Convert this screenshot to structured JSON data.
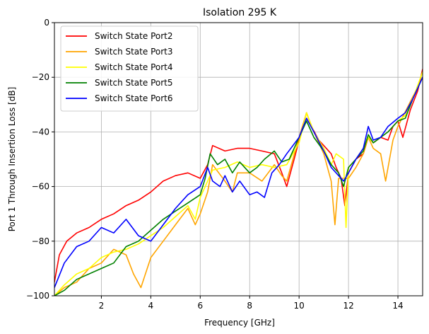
{
  "chart_data": {
    "type": "line",
    "title": "Isolation 295 K",
    "xlabel": "Frequency [GHz]",
    "ylabel": "Port 1 Through Insertion Loss [dB]",
    "xlim": [
      0.1,
      15.0
    ],
    "ylim": [
      -100,
      0
    ],
    "xticks": [
      2,
      4,
      6,
      8,
      10,
      12,
      14
    ],
    "yticks": [
      -100,
      -80,
      -60,
      -40,
      -20,
      0
    ],
    "grid": true,
    "legend_position": "top-left",
    "series": [
      {
        "name": "Switch State Port2",
        "color": "#ff0000",
        "x": [
          0.1,
          0.3,
          0.6,
          1.0,
          1.5,
          2.0,
          2.5,
          3.0,
          3.5,
          4.0,
          4.5,
          5.0,
          5.5,
          6.0,
          6.3,
          6.5,
          7.0,
          7.5,
          8.0,
          8.5,
          9.0,
          9.3,
          9.5,
          9.8,
          10.0,
          10.3,
          10.5,
          10.8,
          11.0,
          11.3,
          11.5,
          11.7,
          11.85,
          12.0,
          12.3,
          12.6,
          12.8,
          13.0,
          13.3,
          13.6,
          13.8,
          14.0,
          14.2,
          14.5,
          14.8,
          15.0
        ],
        "y": [
          -95,
          -85,
          -80,
          -77,
          -75,
          -72,
          -70,
          -67,
          -65,
          -62,
          -58,
          -56,
          -55,
          -57,
          -52,
          -45,
          -47,
          -46,
          -46,
          -47,
          -48,
          -55,
          -60,
          -50,
          -43,
          -33,
          -38,
          -43,
          -45,
          -48,
          -53,
          -57,
          -67,
          -55,
          -50,
          -48,
          -42,
          -44,
          -42,
          -43,
          -38,
          -36,
          -42,
          -32,
          -25,
          -17
        ]
      },
      {
        "name": "Switch State Port3",
        "color": "#ffa500",
        "x": [
          0.1,
          0.5,
          1.0,
          1.5,
          2.0,
          2.5,
          3.0,
          3.3,
          3.6,
          4.0,
          4.5,
          5.0,
          5.5,
          5.8,
          6.0,
          6.3,
          6.5,
          7.0,
          7.3,
          7.5,
          8.0,
          8.5,
          9.0,
          9.3,
          9.5,
          10.0,
          10.3,
          10.6,
          11.0,
          11.3,
          11.45,
          11.6,
          12.0,
          12.3,
          12.6,
          12.8,
          13.0,
          13.3,
          13.5,
          13.8,
          14.0,
          14.5,
          15.0
        ],
        "y": [
          -100,
          -97,
          -95,
          -90,
          -88,
          -83,
          -85,
          -92,
          -97,
          -86,
          -80,
          -74,
          -68,
          -74,
          -70,
          -62,
          -52,
          -58,
          -62,
          -55,
          -55,
          -58,
          -52,
          -56,
          -58,
          -42,
          -33,
          -40,
          -48,
          -58,
          -74,
          -57,
          -57,
          -53,
          -48,
          -42,
          -46,
          -48,
          -58,
          -43,
          -38,
          -29,
          -20
        ]
      },
      {
        "name": "Switch State Port4",
        "color": "#ffff00",
        "x": [
          0.1,
          0.5,
          1.0,
          1.5,
          2.0,
          2.5,
          3.0,
          3.5,
          4.0,
          4.5,
          5.0,
          5.5,
          5.8,
          6.0,
          6.3,
          6.5,
          7.0,
          7.5,
          8.0,
          8.5,
          9.0,
          9.5,
          10.0,
          10.3,
          10.6,
          11.0,
          11.3,
          11.5,
          11.8,
          11.9,
          12.0,
          12.3,
          12.6,
          12.8,
          13.0,
          13.3,
          13.6,
          13.8,
          14.0,
          14.3,
          14.6,
          15.0
        ],
        "y": [
          -100,
          -96,
          -92,
          -90,
          -86,
          -84,
          -83,
          -81,
          -78,
          -75,
          -71,
          -67,
          -72,
          -64,
          -58,
          -54,
          -53,
          -51,
          -53,
          -52,
          -53,
          -52,
          -44,
          -33,
          -40,
          -46,
          -52,
          -48,
          -50,
          -75,
          -53,
          -50,
          -46,
          -42,
          -44,
          -42,
          -40,
          -38,
          -36,
          -34,
          -28,
          -18
        ]
      },
      {
        "name": "Switch State Port5",
        "color": "#008000",
        "x": [
          0.1,
          0.5,
          1.0,
          1.5,
          2.0,
          2.5,
          3.0,
          3.5,
          4.0,
          4.5,
          5.0,
          5.5,
          6.0,
          6.2,
          6.4,
          6.7,
          7.0,
          7.3,
          7.6,
          8.0,
          8.3,
          8.6,
          9.0,
          9.3,
          9.6,
          10.0,
          10.3,
          10.6,
          11.0,
          11.3,
          11.6,
          11.8,
          12.0,
          12.3,
          12.6,
          12.8,
          13.0,
          13.3,
          13.6,
          14.0,
          14.3,
          14.6,
          15.0
        ],
        "y": [
          -100,
          -98,
          -94,
          -92,
          -90,
          -88,
          -82,
          -80,
          -76,
          -72,
          -69,
          -66,
          -63,
          -57,
          -48,
          -52,
          -50,
          -55,
          -51,
          -55,
          -53,
          -50,
          -47,
          -51,
          -50,
          -42,
          -36,
          -42,
          -47,
          -52,
          -55,
          -60,
          -53,
          -50,
          -47,
          -41,
          -44,
          -42,
          -40,
          -36,
          -35,
          -28,
          -20
        ]
      },
      {
        "name": "Switch State Port6",
        "color": "#0000ff",
        "x": [
          0.1,
          0.5,
          1.0,
          1.5,
          2.0,
          2.5,
          3.0,
          3.5,
          4.0,
          4.5,
          5.0,
          5.5,
          6.0,
          6.3,
          6.5,
          6.8,
          7.0,
          7.3,
          7.6,
          8.0,
          8.3,
          8.6,
          8.9,
          9.2,
          9.5,
          10.0,
          10.3,
          10.6,
          11.0,
          11.3,
          11.6,
          11.8,
          12.0,
          12.3,
          12.6,
          12.8,
          13.0,
          13.3,
          13.6,
          14.0,
          14.3,
          14.6,
          15.0
        ],
        "y": [
          -97,
          -88,
          -82,
          -80,
          -75,
          -77,
          -72,
          -78,
          -80,
          -74,
          -68,
          -63,
          -60,
          -53,
          -58,
          -60,
          -56,
          -62,
          -58,
          -63,
          -62,
          -64,
          -55,
          -52,
          -48,
          -42,
          -35,
          -40,
          -47,
          -53,
          -56,
          -58,
          -55,
          -50,
          -46,
          -38,
          -43,
          -42,
          -38,
          -35,
          -33,
          -28,
          -20
        ]
      }
    ]
  }
}
